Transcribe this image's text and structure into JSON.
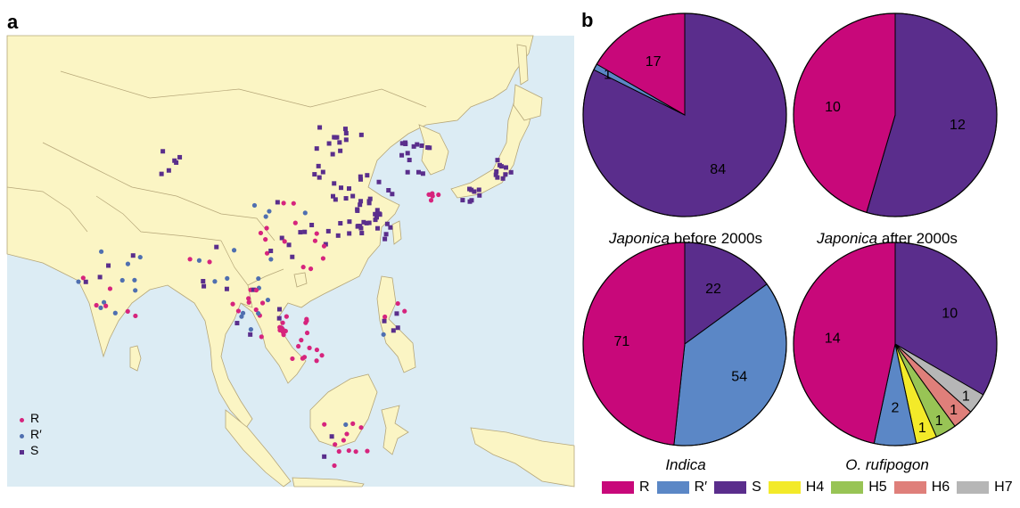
{
  "panels": {
    "a": "a",
    "b": "b"
  },
  "map_legend": [
    {
      "label": "R",
      "color": "#d6247d",
      "shape": "dot"
    },
    {
      "label": "R′",
      "color": "#4f6fb0",
      "shape": "dot"
    },
    {
      "label": "S",
      "color": "#5a2e8c",
      "shape": "square"
    }
  ],
  "colors": {
    "R": "#c8087a",
    "R′": "#5b87c6",
    "S": "#5a2d8c",
    "H4": "#f3ea29",
    "H5": "#98c455",
    "H6": "#df7f7a",
    "H7": "#b6b6b6",
    "sea": "#dcecf4",
    "land": "#fbf5c4",
    "border": "#b5a678"
  },
  "chart_data": [
    {
      "type": "pie",
      "title": "Japonica before 2000s",
      "title_italic": "Japonica",
      "title_rest": " before 2000s",
      "slices": [
        {
          "label": "R",
          "value": 17
        },
        {
          "label": "R′",
          "value": 1
        },
        {
          "label": "S",
          "value": 84
        }
      ]
    },
    {
      "type": "pie",
      "title": "Japonica after 2000s",
      "title_italic": "Japonica",
      "title_rest": " after 2000s",
      "slices": [
        {
          "label": "R",
          "value": 10
        },
        {
          "label": "S",
          "value": 12
        }
      ]
    },
    {
      "type": "pie",
      "title": "Indica",
      "title_italic": "Indica",
      "title_rest": "",
      "slices": [
        {
          "label": "R",
          "value": 71
        },
        {
          "label": "R′",
          "value": 54
        },
        {
          "label": "S",
          "value": 22
        }
      ]
    },
    {
      "type": "pie",
      "title": "O. rufipogon",
      "title_italic": "O. rufipogon",
      "title_rest": "",
      "slices": [
        {
          "label": "R",
          "value": 14
        },
        {
          "label": "R′",
          "value": 2
        },
        {
          "label": "H4",
          "value": 1
        },
        {
          "label": "H5",
          "value": 1
        },
        {
          "label": "H6",
          "value": 1
        },
        {
          "label": "H7",
          "value": 1
        },
        {
          "label": "S",
          "value": 10
        }
      ]
    }
  ],
  "pie_legend": [
    "R",
    "R′",
    "S",
    "H4",
    "H5",
    "H6",
    "H7"
  ]
}
